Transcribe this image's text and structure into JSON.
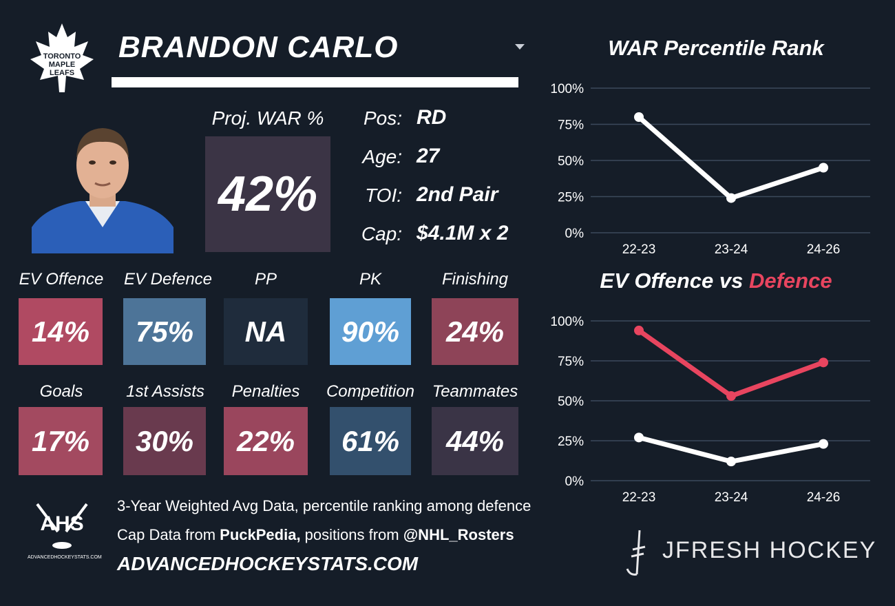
{
  "player": {
    "name": "BRANDON CARLO",
    "proj_label": "Proj. WAR %",
    "proj_value": "42%",
    "info": [
      {
        "key": "Pos:",
        "value": "RD"
      },
      {
        "key": "Age:",
        "value": "27"
      },
      {
        "key": "TOI:",
        "value": "2nd Pair"
      },
      {
        "key": "Cap:",
        "value": "$4.1M x 2"
      }
    ]
  },
  "team_logo": {
    "icon": "maple-leaf-icon",
    "text": [
      "TORONTO",
      "MAPLE",
      "LEAFS"
    ]
  },
  "tiles_row1": [
    {
      "label": "EV Offence",
      "value": "14%",
      "color": "#b04a62"
    },
    {
      "label": "EV Defence",
      "value": "75%",
      "color": "#4d7498"
    },
    {
      "label": "PP",
      "value": "NA",
      "color": "#1f2c3c"
    },
    {
      "label": "PK",
      "value": "90%",
      "color": "#5f9fd4"
    },
    {
      "label": "Finishing",
      "value": "24%",
      "color": "#8e4458"
    }
  ],
  "tiles_row2": [
    {
      "label": "Goals",
      "value": "17%",
      "color": "#a34a60"
    },
    {
      "label": "1st Assists",
      "value": "30%",
      "color": "#693a4e"
    },
    {
      "label": "Penalties",
      "value": "22%",
      "color": "#9a465d"
    },
    {
      "label": "Competition",
      "value": "61%",
      "color": "#33506d"
    },
    {
      "label": "Teammates",
      "value": "44%",
      "color": "#3a3446"
    }
  ],
  "footer": {
    "ahs_logo": "AHS",
    "ahs_small": "ADVANCEDHOCKEYSTATS.COM",
    "line1": "3-Year Weighted Avg Data, percentile ranking among defence",
    "line2_pre": "Cap Data from ",
    "line2_b1": "PuckPedia,",
    "line2_mid": " positions from ",
    "line2_b2": "@NHL_Rosters",
    "site": "ADVANCEDHOCKEYSTATS.COM",
    "brand": "JFRESH HOCKEY"
  },
  "chart_data": [
    {
      "type": "line",
      "title": "WAR Percentile Rank",
      "categories": [
        "22-23",
        "23-24",
        "24-26"
      ],
      "yticks": [
        "0%",
        "25%",
        "50%",
        "75%",
        "100%"
      ],
      "ylim": [
        0,
        100
      ],
      "grid": true,
      "series": [
        {
          "values": [
            80,
            24,
            45
          ],
          "color": "#ffffff"
        }
      ]
    },
    {
      "type": "line",
      "title_part1": "EV Offence vs ",
      "title_part2": "Defence",
      "categories": [
        "22-23",
        "23-24",
        "24-26"
      ],
      "yticks": [
        "0%",
        "25%",
        "50%",
        "75%",
        "100%"
      ],
      "ylim": [
        0,
        100
      ],
      "grid": true,
      "series": [
        {
          "values": [
            94,
            53,
            74
          ],
          "color": "#e8455f"
        },
        {
          "values": [
            27,
            12,
            23
          ],
          "color": "#ffffff"
        }
      ]
    }
  ]
}
